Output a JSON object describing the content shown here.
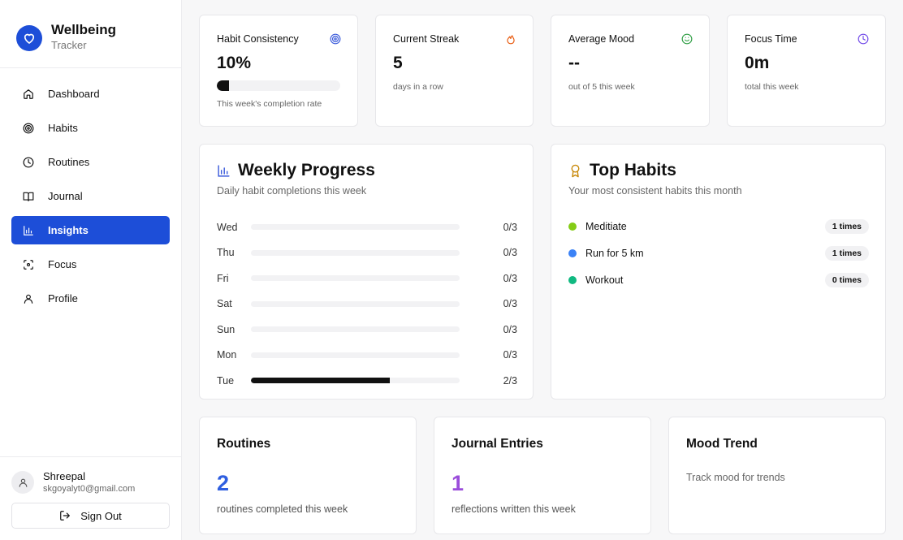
{
  "brand": {
    "name": "Wellbeing",
    "subtitle": "Tracker",
    "icon": "heart-icon"
  },
  "nav": {
    "items": [
      {
        "label": "Dashboard",
        "icon": "home-icon"
      },
      {
        "label": "Habits",
        "icon": "target-icon"
      },
      {
        "label": "Routines",
        "icon": "clock-icon"
      },
      {
        "label": "Journal",
        "icon": "book-icon"
      },
      {
        "label": "Insights",
        "icon": "bar-chart-icon",
        "active": true
      },
      {
        "label": "Focus",
        "icon": "focus-icon"
      },
      {
        "label": "Profile",
        "icon": "user-icon"
      }
    ],
    "active_color": "#1d4ed8"
  },
  "user": {
    "name": "Shreepal",
    "email": "skgoyalyt0@gmail.com",
    "signout_label": "Sign Out"
  },
  "stats": {
    "habit_consistency": {
      "title": "Habit Consistency",
      "value": "10%",
      "progress": 0.1,
      "sub": "This week's completion rate",
      "icon": "target-icon",
      "icon_color": "#3b5bdb"
    },
    "current_streak": {
      "title": "Current Streak",
      "value": "5",
      "sub": "days in a row",
      "icon": "flame-icon",
      "icon_color": "#e8590c"
    },
    "average_mood": {
      "title": "Average Mood",
      "value": "--",
      "sub": "out of 5 this week",
      "icon": "smile-icon",
      "icon_color": "#2f9e44"
    },
    "focus_time": {
      "title": "Focus Time",
      "value": "0m",
      "sub": "total this week",
      "icon": "clock-icon",
      "icon_color": "#7048e8"
    }
  },
  "weekly_progress": {
    "title": "Weekly Progress",
    "subtitle": "Daily habit completions this week",
    "icon": "bar-chart-icon",
    "rows": [
      {
        "day": "Wed",
        "done": 0,
        "total": 3,
        "label": "0/3"
      },
      {
        "day": "Thu",
        "done": 0,
        "total": 3,
        "label": "0/3"
      },
      {
        "day": "Fri",
        "done": 0,
        "total": 3,
        "label": "0/3"
      },
      {
        "day": "Sat",
        "done": 0,
        "total": 3,
        "label": "0/3"
      },
      {
        "day": "Sun",
        "done": 0,
        "total": 3,
        "label": "0/3"
      },
      {
        "day": "Mon",
        "done": 0,
        "total": 3,
        "label": "0/3"
      },
      {
        "day": "Tue",
        "done": 2,
        "total": 3,
        "label": "2/3"
      }
    ]
  },
  "top_habits": {
    "title": "Top Habits",
    "subtitle": "Your most consistent habits this month",
    "icon": "award-icon",
    "items": [
      {
        "name": "Meditiate",
        "count": "1 times",
        "color": "#84cc16"
      },
      {
        "name": "Run for 5 km",
        "count": "1 times",
        "color": "#3b82f6"
      },
      {
        "name": "Workout",
        "count": "0 times",
        "color": "#10b981"
      }
    ]
  },
  "bottom": {
    "routines": {
      "title": "Routines",
      "value": "2",
      "sub": "routines completed this week",
      "color": "#2f5fe0"
    },
    "journal": {
      "title": "Journal Entries",
      "value": "1",
      "sub": "reflections written this week",
      "color": "#9b4ddb"
    },
    "mood": {
      "title": "Mood Trend",
      "sub": "Track mood for trends"
    }
  }
}
